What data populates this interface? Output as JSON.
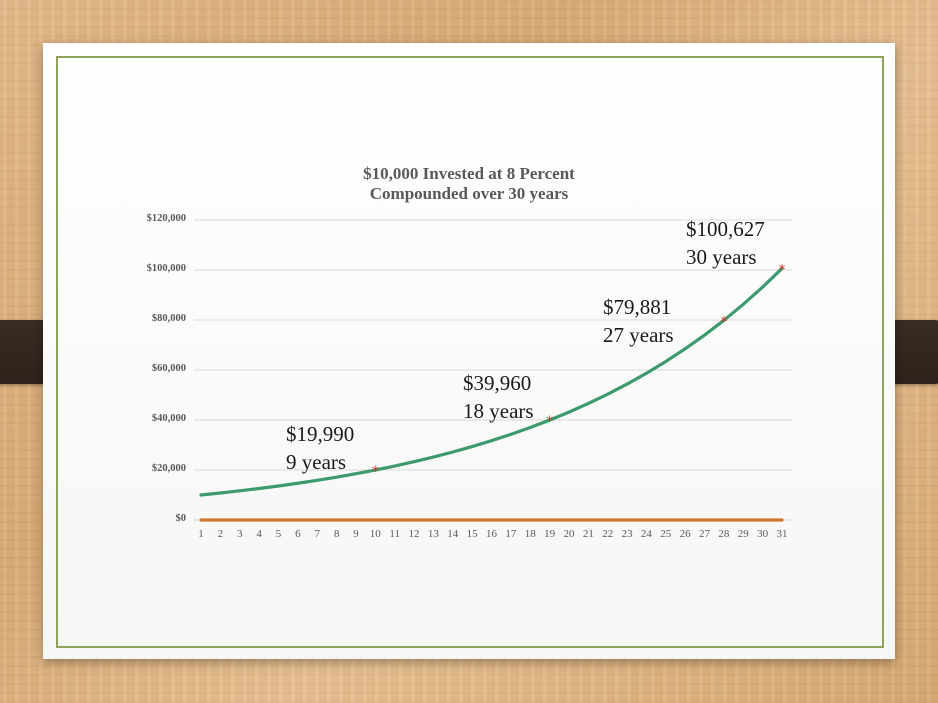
{
  "chart_data": {
    "type": "line",
    "title_line1": "$10,000 Invested at 8 Percent",
    "title_line2": "Compounded over 30 years",
    "x": [
      1,
      2,
      3,
      4,
      5,
      6,
      7,
      8,
      9,
      10,
      11,
      12,
      13,
      14,
      15,
      16,
      17,
      18,
      19,
      20,
      21,
      22,
      23,
      24,
      25,
      26,
      27,
      28,
      29,
      30,
      31
    ],
    "ylim": [
      0,
      120000
    ],
    "yticks": [
      "$0",
      "$20,000",
      "$40,000",
      "$60,000",
      "$80,000",
      "$100,000",
      "$120,000"
    ],
    "ytick_values": [
      0,
      20000,
      40000,
      60000,
      80000,
      100000,
      120000
    ],
    "grid": true,
    "series": [
      {
        "color": "#3c9a6c",
        "values": [
          10000,
          10800,
          11664,
          12597,
          13605,
          14693,
          15869,
          17138,
          18509,
          19990,
          21589,
          23316,
          25182,
          27196,
          29372,
          31722,
          34259,
          37000,
          39960,
          43157,
          46610,
          50338,
          54365,
          58715,
          63412,
          68485,
          73964,
          79881,
          86271,
          93173,
          100627
        ]
      },
      {
        "color": "#d2772e",
        "values": [
          0,
          0,
          0,
          0,
          0,
          0,
          0,
          0,
          0,
          0,
          0,
          0,
          0,
          0,
          0,
          0,
          0,
          0,
          0,
          0,
          0,
          0,
          0,
          0,
          0,
          0,
          0,
          0,
          0,
          0,
          0
        ]
      }
    ],
    "markers": [
      {
        "x": 10,
        "y": 19990
      },
      {
        "x": 19,
        "y": 39960
      },
      {
        "x": 28,
        "y": 79881
      },
      {
        "x": 31,
        "y": 100627
      }
    ],
    "marker_color": "#d23a2a",
    "annotations": [
      {
        "value": "$19,990",
        "label": "9 years"
      },
      {
        "value": "$39,960",
        "label": "18 years"
      },
      {
        "value": "$79,881",
        "label": "27 years"
      },
      {
        "value": "$100,627",
        "label": "30 years"
      }
    ]
  }
}
